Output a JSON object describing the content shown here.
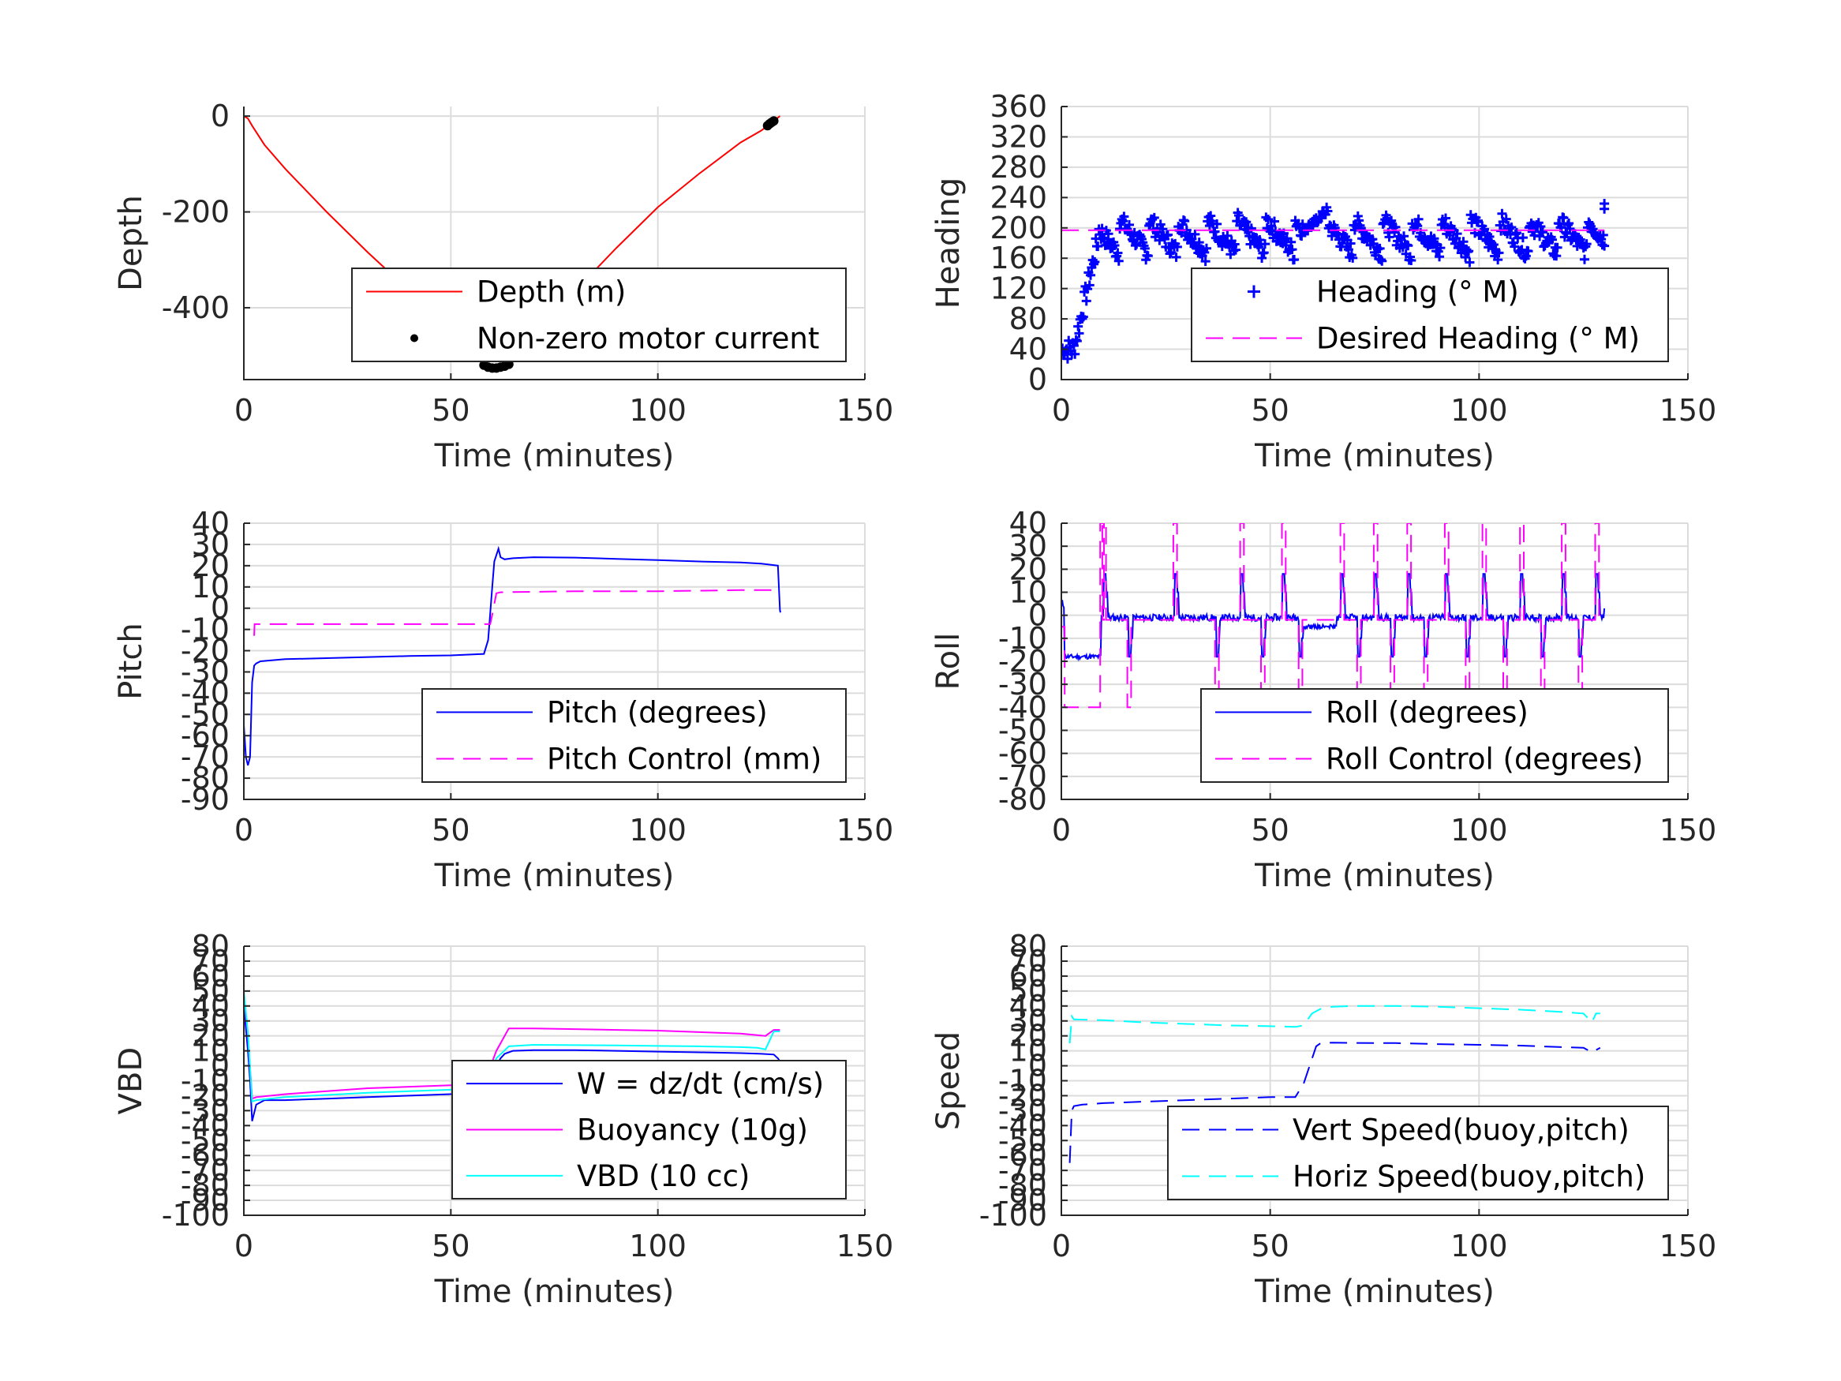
{
  "chart_data": [
    {
      "id": "depth",
      "type": "line",
      "xlabel": "Time (minutes)",
      "ylabel": "Depth",
      "xlim": [
        0,
        150
      ],
      "ylim": [
        -550,
        20
      ],
      "xticks": [
        0,
        50,
        100,
        150
      ],
      "yticks": [
        0,
        -200,
        -400
      ],
      "grid": true,
      "legend_position": "bottom-right",
      "series": [
        {
          "name": "Depth (m)",
          "color": "#ff0000",
          "style": "solid",
          "x": [
            0,
            1,
            2,
            5,
            10,
            20,
            30,
            40,
            50,
            55,
            58,
            60,
            62,
            64,
            70,
            80,
            90,
            100,
            110,
            120,
            125,
            128,
            129.5
          ],
          "y": [
            0,
            -5,
            -20,
            -60,
            -110,
            -200,
            -285,
            -365,
            -440,
            -480,
            -510,
            -525,
            -522,
            -505,
            -455,
            -365,
            -275,
            -190,
            -120,
            -55,
            -30,
            -10,
            0
          ]
        },
        {
          "name": "Non-zero motor current",
          "color": "#000000",
          "style": "markers",
          "x": [
            58,
            59,
            60,
            61,
            62,
            63,
            64,
            126.5,
            127,
            127.5,
            128
          ],
          "y": [
            -520,
            -524,
            -526,
            -526,
            -524,
            -522,
            -518,
            -20,
            -16,
            -13,
            -10
          ]
        }
      ]
    },
    {
      "id": "heading",
      "type": "line",
      "xlabel": "Time (minutes)",
      "ylabel": "Heading",
      "xlim": [
        0,
        150
      ],
      "ylim": [
        0,
        360
      ],
      "xticks": [
        0,
        50,
        100,
        150
      ],
      "yticks": [
        0,
        40,
        80,
        120,
        160,
        200,
        240,
        280,
        320,
        360
      ],
      "grid": true,
      "legend_position": "bottom-right",
      "series": [
        {
          "name": "Heading (° M)",
          "color": "#0000ff",
          "style": "plus"
        },
        {
          "name": "Desired Heading (° M)",
          "color": "#ff00ff",
          "style": "dashed",
          "x": [
            0,
            130
          ],
          "y": [
            197,
            197
          ]
        }
      ]
    },
    {
      "id": "pitch",
      "type": "line",
      "xlabel": "Time (minutes)",
      "ylabel": "Pitch",
      "xlim": [
        0,
        150
      ],
      "ylim": [
        -90,
        40
      ],
      "xticks": [
        0,
        50,
        100,
        150
      ],
      "yticks": [
        40,
        30,
        20,
        10,
        0,
        -10,
        -20,
        -30,
        -40,
        -50,
        -60,
        -70,
        -80,
        -90
      ],
      "grid": true,
      "legend_position": "bottom-right",
      "series": [
        {
          "name": "Pitch (degrees)",
          "color": "#0000ff",
          "style": "solid",
          "x": [
            0,
            0.5,
            1,
            1.5,
            2,
            2.5,
            3,
            4,
            10,
            20,
            30,
            40,
            50,
            58,
            59,
            60,
            60.5,
            61.5,
            62,
            63,
            65,
            70,
            80,
            90,
            100,
            110,
            120,
            125,
            129,
            129.5,
            129.6
          ],
          "y": [
            -55,
            -70,
            -74,
            -70,
            -35,
            -27,
            -26,
            -25,
            -24,
            -23.5,
            -23,
            -22.5,
            -22.2,
            -21.5,
            -15,
            10,
            22,
            28,
            24,
            23,
            23.5,
            24,
            23.8,
            23.2,
            22.6,
            22,
            21.5,
            21,
            20,
            -1,
            -2
          ]
        },
        {
          "name": "Pitch Control (mm)",
          "color": "#ff00ff",
          "style": "dashed",
          "x": [
            2.5,
            2.6,
            10,
            30,
            50,
            59.5,
            60,
            61,
            62,
            80,
            100,
            120,
            129
          ],
          "y": [
            -13,
            -7.5,
            -7.5,
            -7.5,
            -7.5,
            -7.5,
            -3,
            7,
            7.5,
            8,
            8,
            8.5,
            8.5
          ]
        }
      ]
    },
    {
      "id": "roll",
      "type": "line",
      "xlabel": "Time (minutes)",
      "ylabel": "Roll",
      "xlim": [
        0,
        150
      ],
      "ylim": [
        -80,
        40
      ],
      "xticks": [
        0,
        50,
        100,
        150
      ],
      "yticks": [
        40,
        30,
        20,
        10,
        0,
        -10,
        -20,
        -30,
        -40,
        -50,
        -60,
        -70,
        -80
      ],
      "grid": true,
      "legend_position": "bottom-right",
      "series": [
        {
          "name": "Roll (degrees)",
          "color": "#0000ff",
          "style": "solid"
        },
        {
          "name": "Roll Control (degrees)",
          "color": "#ff00ff",
          "style": "dashed"
        }
      ]
    },
    {
      "id": "vbd",
      "type": "line",
      "xlabel": "Time (minutes)",
      "ylabel": "VBD",
      "xlim": [
        0,
        150
      ],
      "ylim": [
        -100,
        80
      ],
      "xticks": [
        0,
        50,
        100,
        150
      ],
      "yticks": [
        80,
        70,
        60,
        50,
        40,
        30,
        20,
        10,
        0,
        -10,
        -20,
        -30,
        -40,
        -50,
        -60,
        -70,
        -80,
        -90,
        -100
      ],
      "grid": true,
      "legend_position": "bottom-right",
      "series": [
        {
          "name": "W = dz/dt (cm/s)",
          "color": "#0000ff",
          "style": "solid",
          "x": [
            0,
            1,
            1.5,
            2,
            3,
            5,
            10,
            20,
            30,
            40,
            50,
            57,
            58,
            60,
            62,
            63,
            65,
            70,
            80,
            90,
            100,
            110,
            120,
            125,
            128,
            129,
            129.5
          ],
          "y": [
            40,
            10,
            -10,
            -37,
            -26,
            -23,
            -23,
            -22,
            -21,
            -20,
            -19,
            -18,
            -17,
            -5,
            5,
            8,
            10,
            10.5,
            10.5,
            10,
            9.5,
            9,
            8.5,
            8,
            7.5,
            5,
            3
          ]
        },
        {
          "name": "Buoyancy (10g)",
          "color": "#ff00ff",
          "style": "solid",
          "x": [
            0,
            1,
            2,
            3,
            10,
            20,
            30,
            40,
            50,
            57,
            58,
            61,
            64,
            70,
            80,
            90,
            100,
            110,
            120,
            124,
            126,
            128,
            129.5
          ],
          "y": [
            48,
            20,
            -22,
            -21,
            -19,
            -17,
            -15,
            -14,
            -13,
            -12.5,
            -12,
            10,
            25,
            25,
            24.5,
            24,
            23.5,
            22.5,
            21.5,
            20.5,
            20,
            24,
            24
          ]
        },
        {
          "name": "VBD (10 cc)",
          "color": "#00ffff",
          "style": "solid",
          "x": [
            0,
            1,
            2,
            3,
            10,
            20,
            30,
            40,
            50,
            57,
            58,
            61,
            64,
            70,
            80,
            90,
            100,
            110,
            120,
            124,
            126,
            128,
            129.5
          ],
          "y": [
            50,
            22,
            -24,
            -23,
            -21,
            -19.5,
            -18,
            -17,
            -16,
            -15.5,
            -15,
            5,
            13,
            14,
            13.8,
            13.6,
            13.3,
            13,
            12.5,
            12,
            11,
            23,
            23
          ]
        }
      ]
    },
    {
      "id": "speed",
      "type": "line",
      "xlabel": "Time (minutes)",
      "ylabel": "Speed",
      "xlim": [
        0,
        150
      ],
      "ylim": [
        -100,
        80
      ],
      "xticks": [
        0,
        50,
        100,
        150
      ],
      "yticks": [
        80,
        70,
        60,
        50,
        40,
        30,
        20,
        10,
        0,
        -10,
        -20,
        -30,
        -40,
        -50,
        -60,
        -70,
        -80,
        -90,
        -100
      ],
      "grid": true,
      "legend_position": "bottom-right",
      "series": [
        {
          "name": "Vert Speed(buoy,pitch)",
          "color": "#0000ff",
          "style": "dashed",
          "x": [
            2,
            2.5,
            3,
            5,
            10,
            20,
            30,
            40,
            50,
            56,
            58,
            61,
            62,
            65,
            70,
            80,
            90,
            100,
            110,
            120,
            125,
            127,
            129
          ],
          "y": [
            -65,
            -30,
            -27,
            -26,
            -25,
            -24,
            -23,
            -22,
            -21,
            -21,
            -12,
            13,
            15,
            15.5,
            15.3,
            15.2,
            14.5,
            14,
            13.5,
            12.5,
            12,
            9,
            12
          ]
        },
        {
          "name": "Horiz Speed(buoy,pitch)",
          "color": "#00ffff",
          "style": "dashed",
          "x": [
            2,
            2.5,
            3,
            10,
            20,
            30,
            40,
            50,
            56,
            58,
            60,
            62,
            65,
            70,
            80,
            90,
            100,
            110,
            120,
            125,
            127,
            128,
            129
          ],
          "y": [
            15,
            33,
            31,
            30.5,
            29,
            28,
            27,
            26.5,
            26,
            27,
            35,
            38,
            39.5,
            40,
            40,
            39.5,
            38.5,
            37.5,
            36,
            35,
            29,
            35,
            35
          ]
        }
      ]
    }
  ]
}
